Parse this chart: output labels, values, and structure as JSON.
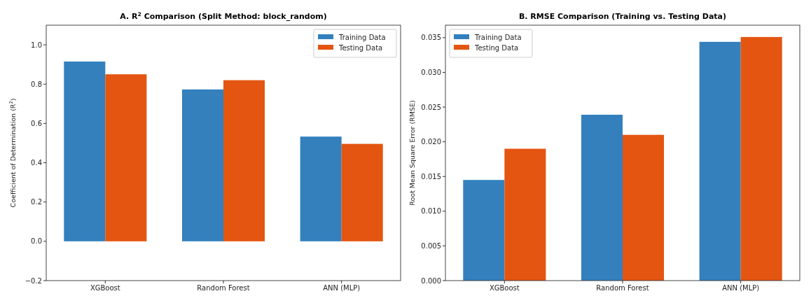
{
  "chart_data": [
    {
      "type": "bar",
      "title": "A. R$^{2}$ Comparison (Split Method: block_random)",
      "ylabel": "Coefficient of Determination (R$^{2}$)",
      "categories": [
        "XGBoost",
        "Random Forest",
        "ANN (MLP)"
      ],
      "series": [
        {
          "name": "Training Data",
          "color": "#3380bd",
          "values": [
            0.915,
            0.773,
            0.533
          ]
        },
        {
          "name": "Testing Data",
          "color": "#e35511",
          "values": [
            0.85,
            0.82,
            0.496
          ]
        }
      ],
      "ylim": [
        -0.2,
        1.1
      ],
      "yticks": [
        {
          "value": -0.2,
          "label": "−0.2"
        },
        {
          "value": 0,
          "label": "0.0"
        },
        {
          "value": 0.2,
          "label": "0.2"
        },
        {
          "value": 0.4,
          "label": "0.4"
        },
        {
          "value": 0.6,
          "label": "0.6"
        },
        {
          "value": 0.8,
          "label": "0.8"
        },
        {
          "value": 1,
          "label": "1.0"
        }
      ],
      "grid": false,
      "legend": "top right"
    },
    {
      "type": "bar",
      "title": "B. RMSE Comparison (Training vs. Testing Data)",
      "ylabel": "Root Mean Square Error (RMSE)",
      "categories": [
        "XGBoost",
        "Random Forest",
        "ANN (MLP)"
      ],
      "series": [
        {
          "name": "Training Data",
          "color": "#3380bd",
          "values": [
            0.0145,
            0.0239,
            0.0344
          ]
        },
        {
          "name": "Testing Data",
          "color": "#e35511",
          "values": [
            0.019,
            0.021,
            0.0351
          ]
        }
      ],
      "ylim": [
        0,
        0.0368
      ],
      "yticks": [
        {
          "value": 0,
          "label": "0.000"
        },
        {
          "value": 0.005,
          "label": "0.005"
        },
        {
          "value": 0.01,
          "label": "0.010"
        },
        {
          "value": 0.015,
          "label": "0.015"
        },
        {
          "value": 0.02,
          "label": "0.020"
        },
        {
          "value": 0.025,
          "label": "0.025"
        },
        {
          "value": 0.03,
          "label": "0.030"
        },
        {
          "value": 0.035,
          "label": "0.035"
        }
      ],
      "grid": false,
      "legend": "top left"
    }
  ]
}
